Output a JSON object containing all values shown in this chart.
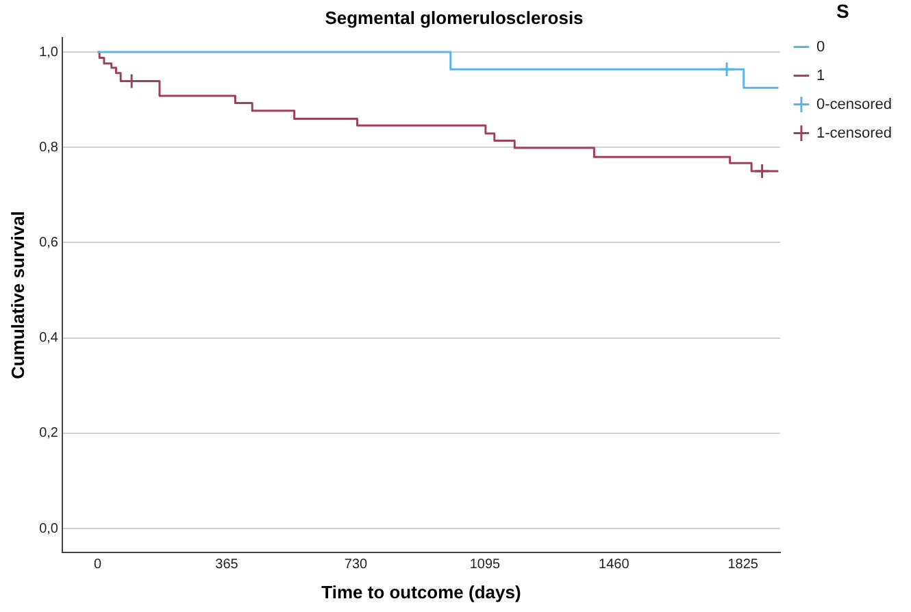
{
  "chart_data": {
    "type": "step",
    "title": "Segmental glomerulosclerosis",
    "xlabel": "Time to outcome (days)",
    "ylabel": "Cumulative survival",
    "legend_title": "S",
    "xlim": [
      -100,
      1930
    ],
    "xticks": [
      0,
      365,
      730,
      1095,
      1460,
      1825
    ],
    "ylim": [
      -0.05,
      1.03
    ],
    "yticks": [
      {
        "value": 0,
        "label": "0,0"
      },
      {
        "value": 0.2,
        "label": "0,2"
      },
      {
        "value": 0.4,
        "label": "0,4"
      },
      {
        "value": 0.6,
        "label": "0,6"
      },
      {
        "value": 0.8,
        "label": "0,8"
      },
      {
        "value": 1,
        "label": "1,0"
      }
    ],
    "grid": "y",
    "legend": "top right",
    "line_style": "solid",
    "series": [
      {
        "name": "0",
        "color": "#5ab4e6",
        "x": [
          0,
          998,
          1827,
          1925
        ],
        "values": [
          1,
          0.964,
          0.925,
          0.925
        ]
      },
      {
        "name": "1",
        "color": "#a0405f",
        "x": [
          0,
          5,
          18,
          39,
          52,
          65,
          175,
          389,
          437,
          556,
          734,
          1097,
          1122,
          1179,
          1404,
          1788,
          1849,
          1925
        ],
        "values": [
          1,
          0.988,
          0.976,
          0.967,
          0.956,
          0.939,
          0.908,
          0.893,
          0.877,
          0.86,
          0.846,
          0.829,
          0.814,
          0.799,
          0.78,
          0.767,
          0.75,
          0.75
        ]
      },
      {
        "name": "0-censored",
        "type": "scatter",
        "marker": "cross",
        "color": "#5ab4e6",
        "x": [
          1779
        ],
        "values": [
          0.964
        ]
      },
      {
        "name": "1-censored",
        "type": "scatter",
        "marker": "cross",
        "color": "#a0405f",
        "x": [
          96,
          1879
        ],
        "values": [
          0.939,
          0.75
        ]
      }
    ]
  }
}
